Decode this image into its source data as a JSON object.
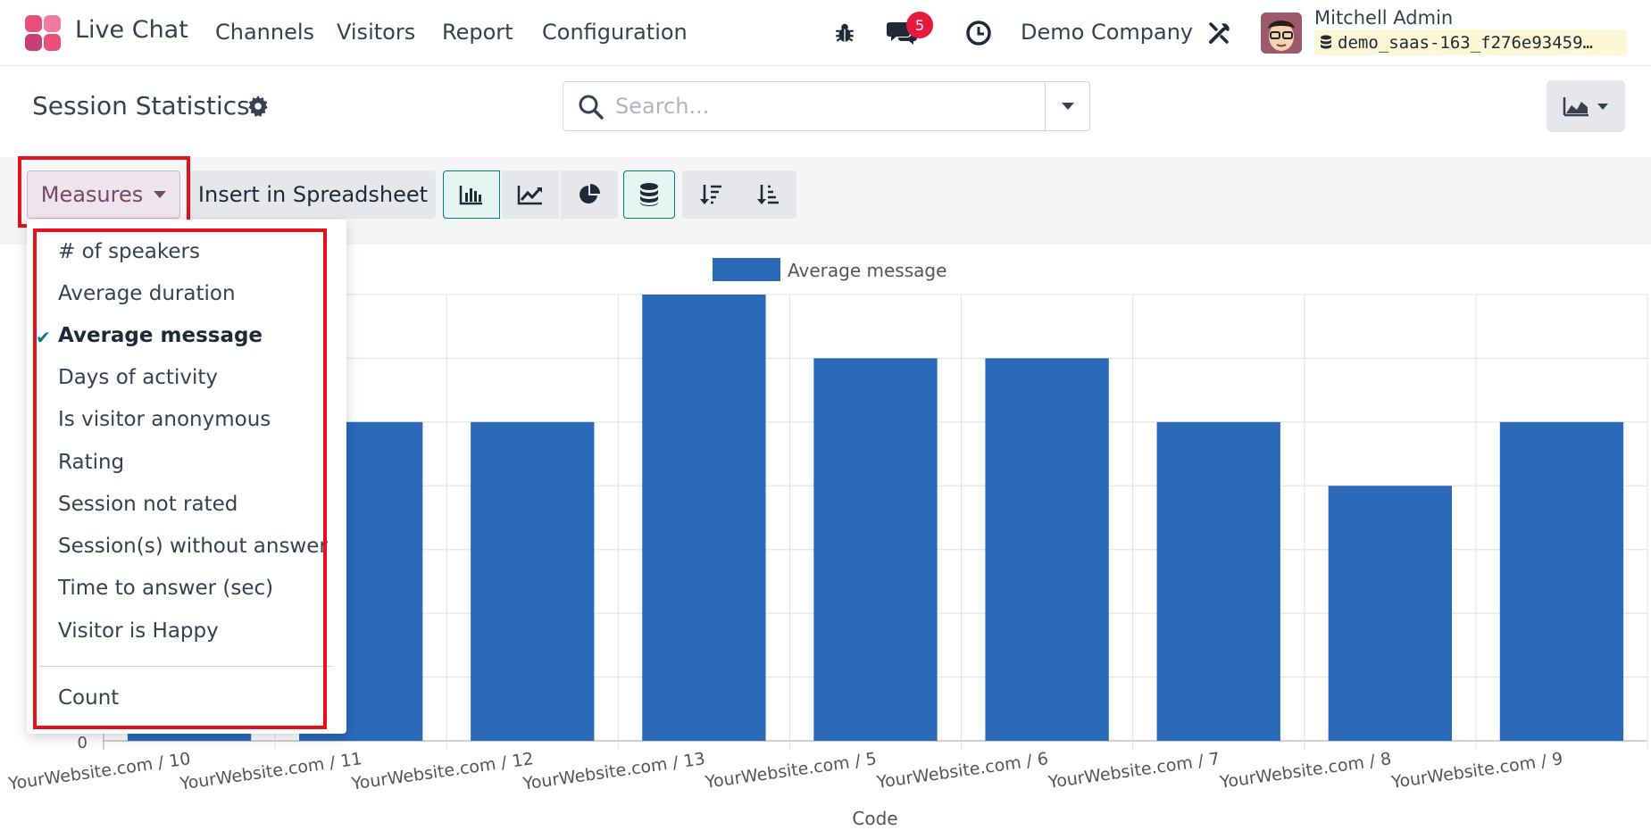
{
  "navbar": {
    "app_name": "Live Chat",
    "menu": [
      "Channels",
      "Visitors",
      "Report",
      "Configuration"
    ],
    "messages_badge": "5",
    "company": "Demo Company",
    "user_name": "Mitchell Admin",
    "database": "demo_saas-163_f276e93459…"
  },
  "control_panel": {
    "title": "Session Statistics",
    "search_placeholder": "Search..."
  },
  "toolbar": {
    "measures_label": "Measures",
    "insert_label": "Insert in Spreadsheet"
  },
  "measures_menu": {
    "items": [
      {
        "label": "# of speakers",
        "checked": false
      },
      {
        "label": "Average duration",
        "checked": false
      },
      {
        "label": "Average message",
        "checked": true
      },
      {
        "label": "Days of activity",
        "checked": false
      },
      {
        "label": "Is visitor anonymous",
        "checked": false
      },
      {
        "label": "Rating",
        "checked": false
      },
      {
        "label": "Session not rated",
        "checked": false
      },
      {
        "label": "Session(s) without answer",
        "checked": false
      },
      {
        "label": "Time to answer (sec)",
        "checked": false
      },
      {
        "label": "Visitor is Happy",
        "checked": false
      }
    ],
    "count_label": "Count"
  },
  "chart_data": {
    "type": "bar",
    "legend": "Average message",
    "xlabel": "Code",
    "categories": [
      "YourWebsite.com / 10",
      "YourWebsite.com / 11",
      "YourWebsite.com / 12",
      "YourWebsite.com / 13",
      "YourWebsite.com / 5",
      "YourWebsite.com / 6",
      "YourWebsite.com / 7",
      "YourWebsite.com / 8",
      "YourWebsite.com / 9"
    ],
    "values": [
      5,
      5,
      5,
      7,
      6,
      6,
      5,
      4,
      5
    ],
    "ylim": [
      0,
      7
    ],
    "y_ticks": [
      "0"
    ],
    "bar_color": "#2a6ab8"
  }
}
